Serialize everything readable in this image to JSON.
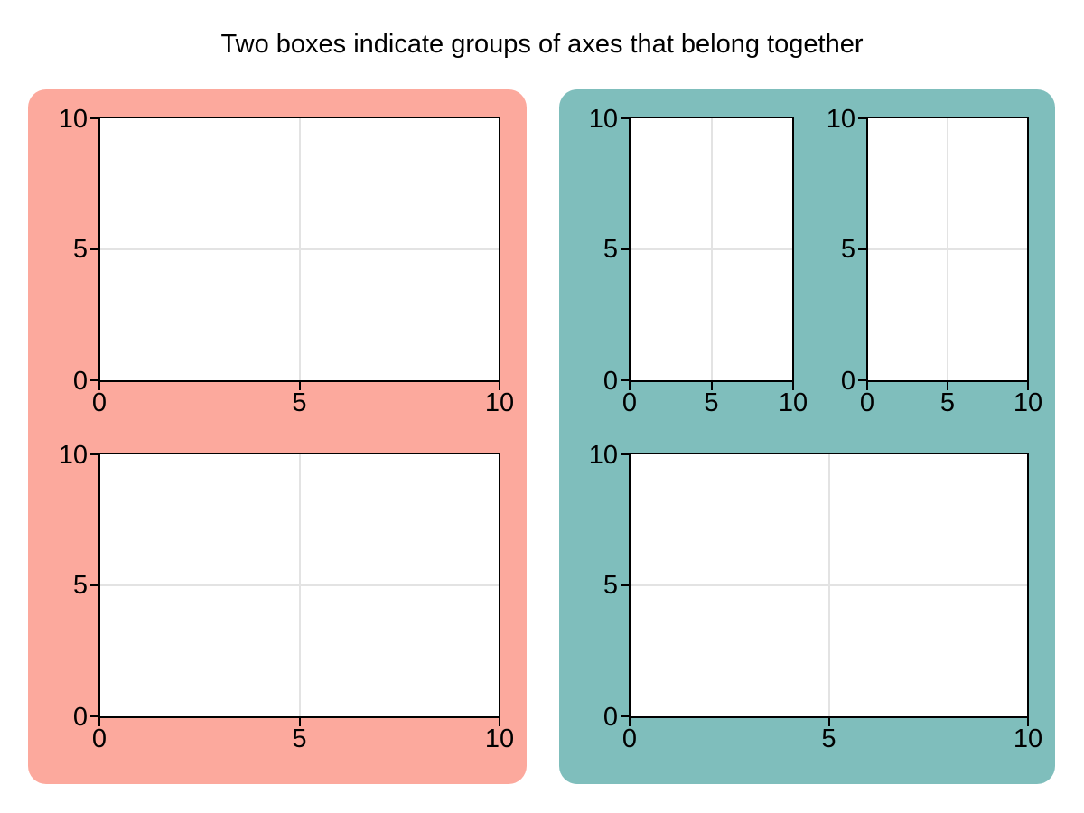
{
  "title": "Two boxes indicate groups of axes that belong together",
  "groups": [
    {
      "id": "left-box",
      "color": "#FCA99D"
    },
    {
      "id": "right-box",
      "color": "#7FBEBC"
    }
  ],
  "axis_style": {
    "spine_color": "#000000",
    "grid_color": "#e3e3e3",
    "tick_label_color": "#000000",
    "background": "#ffffff"
  },
  "plots": [
    {
      "id": "left-top",
      "group": "left-box",
      "xticks": [
        "0",
        "5",
        "10"
      ],
      "yticks": [
        "10",
        "5",
        "0"
      ]
    },
    {
      "id": "left-bottom",
      "group": "left-box",
      "xticks": [
        "0",
        "5",
        "10"
      ],
      "yticks": [
        "10",
        "5",
        "0"
      ]
    },
    {
      "id": "right-top-left",
      "group": "right-box",
      "xticks": [
        "0",
        "5",
        "10"
      ],
      "yticks": [
        "10",
        "5",
        "0"
      ]
    },
    {
      "id": "right-top-right",
      "group": "right-box",
      "xticks": [
        "0",
        "5",
        "10"
      ],
      "yticks": [
        "10",
        "5",
        "0"
      ]
    },
    {
      "id": "right-bottom",
      "group": "right-box",
      "xticks": [
        "0",
        "5",
        "10"
      ],
      "yticks": [
        "10",
        "5",
        "0"
      ]
    }
  ],
  "chart_data": [
    {
      "type": "line",
      "title": "",
      "series": [],
      "group": "left-box",
      "position": "top",
      "xlim": [
        0,
        10
      ],
      "ylim": [
        0,
        10
      ],
      "xticks": [
        0,
        5,
        10
      ],
      "yticks": [
        0,
        5,
        10
      ],
      "grid": true
    },
    {
      "type": "line",
      "title": "",
      "series": [],
      "group": "left-box",
      "position": "bottom",
      "xlim": [
        0,
        10
      ],
      "ylim": [
        0,
        10
      ],
      "xticks": [
        0,
        5,
        10
      ],
      "yticks": [
        0,
        5,
        10
      ],
      "grid": true
    },
    {
      "type": "line",
      "title": "",
      "series": [],
      "group": "right-box",
      "position": "top-left",
      "xlim": [
        0,
        10
      ],
      "ylim": [
        0,
        10
      ],
      "xticks": [
        0,
        5,
        10
      ],
      "yticks": [
        0,
        5,
        10
      ],
      "grid": true
    },
    {
      "type": "line",
      "title": "",
      "series": [],
      "group": "right-box",
      "position": "top-right",
      "xlim": [
        0,
        10
      ],
      "ylim": [
        0,
        10
      ],
      "xticks": [
        0,
        5,
        10
      ],
      "yticks": [
        0,
        5,
        10
      ],
      "grid": true
    },
    {
      "type": "line",
      "title": "",
      "series": [],
      "group": "right-box",
      "position": "bottom",
      "xlim": [
        0,
        10
      ],
      "ylim": [
        0,
        10
      ],
      "xticks": [
        0,
        5,
        10
      ],
      "yticks": [
        0,
        5,
        10
      ],
      "grid": true
    }
  ]
}
